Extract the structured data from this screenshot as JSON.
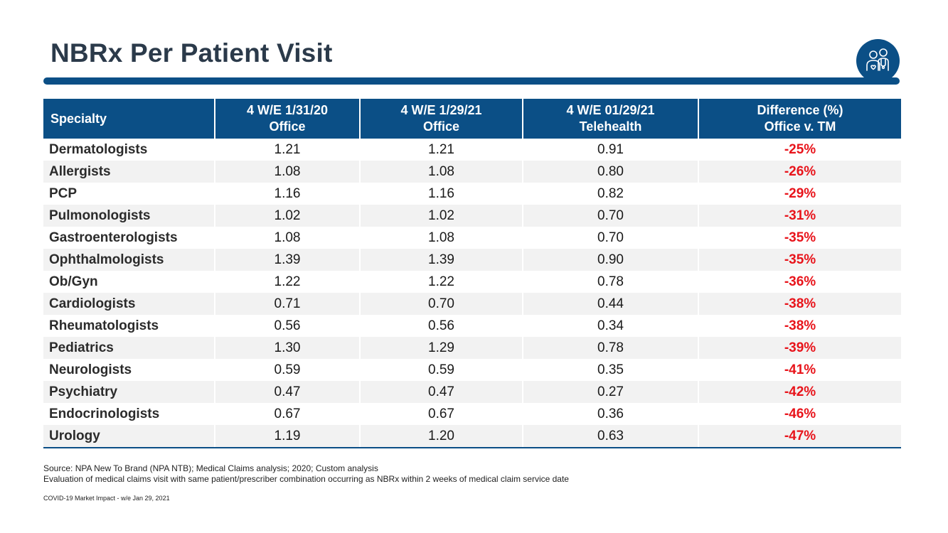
{
  "slide": {
    "title": "NBRx Per Patient Visit"
  },
  "table": {
    "headers": [
      {
        "line1": "Specialty",
        "line2": ""
      },
      {
        "line1": "4 W/E 1/31/20",
        "line2": "Office"
      },
      {
        "line1": "4 W/E 1/29/21",
        "line2": "Office"
      },
      {
        "line1": "4 W/E 01/29/21",
        "line2": "Telehealth"
      },
      {
        "line1": "Difference (%)",
        "line2": "Office v. TM"
      }
    ],
    "rows": [
      {
        "specialty": "Dermatologists",
        "office_2020": "1.21",
        "office_2021": "1.21",
        "telehealth_2021": "0.91",
        "difference": "-25%"
      },
      {
        "specialty": "Allergists",
        "office_2020": "1.08",
        "office_2021": "1.08",
        "telehealth_2021": "0.80",
        "difference": "-26%"
      },
      {
        "specialty": "PCP",
        "office_2020": "1.16",
        "office_2021": "1.16",
        "telehealth_2021": "0.82",
        "difference": "-29%"
      },
      {
        "specialty": "Pulmonologists",
        "office_2020": "1.02",
        "office_2021": "1.02",
        "telehealth_2021": "0.70",
        "difference": "-31%"
      },
      {
        "specialty": "Gastroenterologists",
        "office_2020": "1.08",
        "office_2021": "1.08",
        "telehealth_2021": "0.70",
        "difference": "-35%"
      },
      {
        "specialty": "Ophthalmologists",
        "office_2020": "1.39",
        "office_2021": "1.39",
        "telehealth_2021": "0.90",
        "difference": "-35%"
      },
      {
        "specialty": "Ob/Gyn",
        "office_2020": "1.22",
        "office_2021": "1.22",
        "telehealth_2021": "0.78",
        "difference": "-36%"
      },
      {
        "specialty": "Cardiologists",
        "office_2020": "0.71",
        "office_2021": "0.70",
        "telehealth_2021": "0.44",
        "difference": "-38%"
      },
      {
        "specialty": "Rheumatologists",
        "office_2020": "0.56",
        "office_2021": "0.56",
        "telehealth_2021": "0.34",
        "difference": "-38%"
      },
      {
        "specialty": "Pediatrics",
        "office_2020": "1.30",
        "office_2021": "1.29",
        "telehealth_2021": "0.78",
        "difference": "-39%"
      },
      {
        "specialty": "Neurologists",
        "office_2020": "0.59",
        "office_2021": "0.59",
        "telehealth_2021": "0.35",
        "difference": "-41%"
      },
      {
        "specialty": "Psychiatry",
        "office_2020": "0.47",
        "office_2021": "0.47",
        "telehealth_2021": "0.27",
        "difference": "-42%"
      },
      {
        "specialty": "Endocrinologists",
        "office_2020": "0.67",
        "office_2021": "0.67",
        "telehealth_2021": "0.36",
        "difference": "-46%"
      },
      {
        "specialty": "Urology",
        "office_2020": "1.19",
        "office_2021": "1.20",
        "telehealth_2021": "0.63",
        "difference": "-47%"
      }
    ]
  },
  "notes": {
    "source_line1": "Source: NPA New To Brand (NPA NTB); Medical Claims analysis; 2020; Custom analysis",
    "source_line2": "Evaluation of medical claims visit with same patient/prescriber combination occurring as NBRx within 2 weeks of medical claim service date",
    "footer": "COVID-19 Market Impact - w/e Jan 29, 2021"
  },
  "icons": {
    "logo": "patient-doctor-icon"
  },
  "colors": {
    "brand_blue": "#0b4f86",
    "negative_red": "#e8141b",
    "zebra_gray": "#f2f2f2",
    "title_text": "#2b3a4a"
  }
}
